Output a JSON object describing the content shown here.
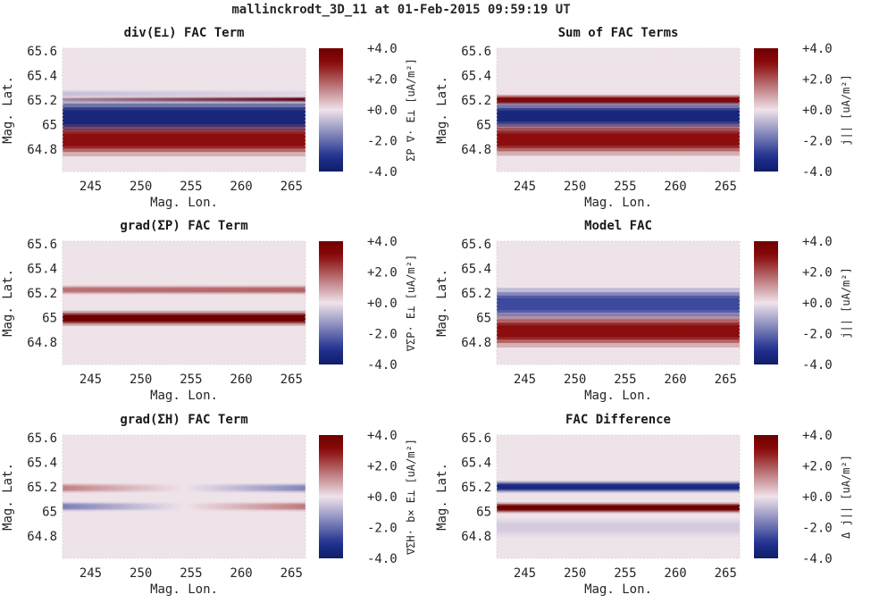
{
  "figure_title": "mallinckrodt_3D_11 at 01-Feb-2015 09:59:19 UT",
  "colors": {
    "neg": "#1f2f8f",
    "zero": "#efe3ea",
    "pos": "#8a0a0a"
  },
  "chart_data": [
    {
      "type": "heatmap",
      "title": "div(E⊥) FAC Term",
      "xlabel": "Mag. Lon.",
      "ylabel": "Mag. Lat.",
      "colorbar_label": "ΣP ∇· E⊥ [uA/m²]",
      "xlim": [
        242.2,
        266.4
      ],
      "ylim": [
        64.62,
        65.62
      ],
      "xticks": [
        "245",
        "250",
        "255",
        "260",
        "265"
      ],
      "yticks": [
        "64.8",
        "65",
        "65.2",
        "65.4",
        "65.6"
      ],
      "clim": [
        -4.0,
        4.0
      ],
      "cticks": [
        "-4.0",
        "-2.0",
        "+0.0",
        "+2.0",
        "+4.0"
      ],
      "bands": [
        {
          "lat": 65.25,
          "width": 0.015,
          "v0": -0.6,
          "v1": -0.2
        },
        {
          "lat": 65.205,
          "width": 0.01,
          "v0": 0.8,
          "v1": 3.8
        },
        {
          "lat": 65.06,
          "width": 0.07,
          "v0": -3.5,
          "v1": -3.5
        },
        {
          "lat": 64.875,
          "width": 0.06,
          "v0": 3.0,
          "v1": 3.0
        }
      ]
    },
    {
      "type": "heatmap",
      "title": "Sum of FAC Terms",
      "xlabel": "Mag. Lon.",
      "ylabel": "Mag. Lat.",
      "colorbar_label": "j|| [uA/m²]",
      "xlim": [
        242.2,
        266.4
      ],
      "ylim": [
        64.62,
        65.62
      ],
      "xticks": [
        "245",
        "250",
        "255",
        "260",
        "265"
      ],
      "yticks": [
        "64.8",
        "65",
        "65.2",
        "65.4",
        "65.6"
      ],
      "clim": [
        -4.0,
        4.0
      ],
      "cticks": [
        "-4.0",
        "-2.0",
        "+0.0",
        "+2.0",
        "+4.0"
      ],
      "bands": [
        {
          "lat": 65.2,
          "width": 0.02,
          "v0": 3.3,
          "v1": 3.3
        },
        {
          "lat": 65.07,
          "width": 0.055,
          "v0": -3.5,
          "v1": -3.5
        },
        {
          "lat": 64.88,
          "width": 0.06,
          "v0": 3.0,
          "v1": 3.0
        }
      ]
    },
    {
      "type": "heatmap",
      "title": "grad(ΣP) FAC Term",
      "xlabel": "Mag. Lon.",
      "ylabel": "Mag. Lat.",
      "colorbar_label": "∇ΣP· E⊥ [uA/m²]",
      "xlim": [
        242.2,
        266.4
      ],
      "ylim": [
        64.62,
        65.62
      ],
      "xticks": [
        "245",
        "250",
        "255",
        "260",
        "265"
      ],
      "yticks": [
        "64.8",
        "65",
        "65.2",
        "65.4",
        "65.6"
      ],
      "clim": [
        -4.0,
        4.0
      ],
      "cticks": [
        "-4.0",
        "-2.0",
        "+0.0",
        "+2.0",
        "+4.0"
      ],
      "bands": [
        {
          "lat": 65.225,
          "width": 0.017,
          "v0": 1.6,
          "v1": 1.8
        },
        {
          "lat": 64.995,
          "width": 0.028,
          "v0": 4.0,
          "v1": 4.0
        }
      ]
    },
    {
      "type": "heatmap",
      "title": "Model FAC",
      "xlabel": "Mag. Lon.",
      "ylabel": "Mag. Lat.",
      "colorbar_label": "j|| [uA/m²]",
      "xlim": [
        242.2,
        266.4
      ],
      "ylim": [
        64.62,
        65.62
      ],
      "xticks": [
        "245",
        "250",
        "255",
        "260",
        "265"
      ],
      "yticks": [
        "64.8",
        "65",
        "65.2",
        "65.4",
        "65.6"
      ],
      "clim": [
        -4.0,
        4.0
      ],
      "cticks": [
        "-4.0",
        "-2.0",
        "+0.0",
        "+2.0",
        "+4.0"
      ],
      "bands": [
        {
          "lat": 65.11,
          "width": 0.06,
          "v0": -2.6,
          "v1": -2.6
        },
        {
          "lat": 64.89,
          "width": 0.06,
          "v0": 3.0,
          "v1": 3.0
        }
      ]
    },
    {
      "type": "heatmap",
      "title": "grad(ΣH) FAC Term",
      "xlabel": "Mag. Lon.",
      "ylabel": "Mag. Lat.",
      "colorbar_label": "∇ΣH· b× E⊥ [uA/m²]",
      "xlim": [
        242.2,
        266.4
      ],
      "ylim": [
        64.62,
        65.62
      ],
      "xticks": [
        "245",
        "250",
        "255",
        "260",
        "265"
      ],
      "yticks": [
        "64.8",
        "65",
        "65.2",
        "65.4",
        "65.6"
      ],
      "clim": [
        -4.0,
        4.0
      ],
      "cticks": [
        "-4.0",
        "-2.0",
        "+0.0",
        "+2.0",
        "+4.0"
      ],
      "bands": [
        {
          "lat": 65.19,
          "width": 0.018,
          "v0": 1.4,
          "v1": -1.6,
          "mid": 0.0
        },
        {
          "lat": 65.04,
          "width": 0.018,
          "v0": -1.7,
          "v1": 1.5,
          "mid": 0.0
        }
      ]
    },
    {
      "type": "heatmap",
      "title": "FAC Difference",
      "xlabel": "Mag. Lon.",
      "ylabel": "Mag. Lat.",
      "colorbar_label": "Δ j|| [uA/m²]",
      "xlim": [
        242.2,
        266.4
      ],
      "ylim": [
        64.62,
        65.62
      ],
      "xticks": [
        "245",
        "250",
        "255",
        "260",
        "265"
      ],
      "yticks": [
        "64.8",
        "65",
        "65.2",
        "65.4",
        "65.6"
      ],
      "clim": [
        -4.0,
        4.0
      ],
      "cticks": [
        "-4.0",
        "-2.0",
        "+0.0",
        "+2.0",
        "+4.0"
      ],
      "bands": [
        {
          "lat": 65.2,
          "width": 0.022,
          "v0": -3.4,
          "v1": -3.4
        },
        {
          "lat": 65.03,
          "width": 0.02,
          "v0": 4.0,
          "v1": 4.0
        },
        {
          "lat": 64.87,
          "width": 0.035,
          "v0": -0.4,
          "v1": -0.4
        }
      ]
    }
  ]
}
